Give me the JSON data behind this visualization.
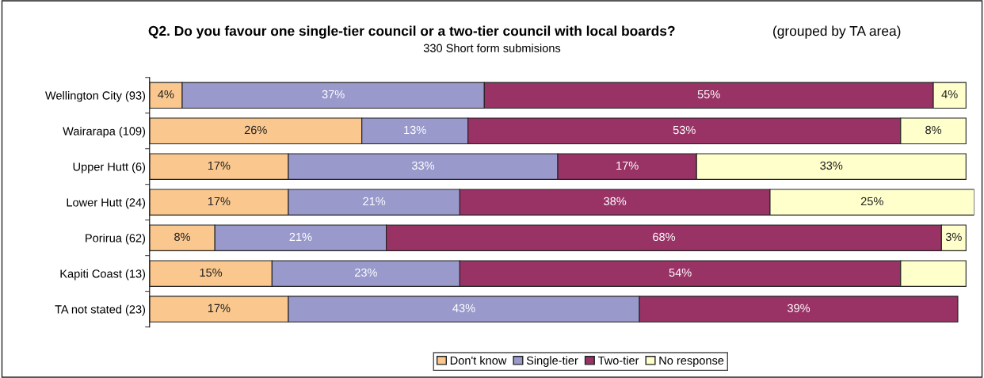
{
  "chart_data": {
    "type": "bar",
    "orientation": "horizontal",
    "stacked": true,
    "title": "Q2. Do you favour one single-tier council or a two-tier council with local boards?",
    "subtitle": "330 Short form submisions",
    "annotations": [
      "(grouped by TA area)"
    ],
    "categories": [
      "Wellington City (93)",
      "Wairarapa (109)",
      "Upper Hutt (6)",
      "Lower Hutt (24)",
      "Porirua (62)",
      "Kapiti Coast (13)",
      "TA not stated (23)"
    ],
    "xlim": [
      0,
      101
    ],
    "series": [
      {
        "name": "Don't know",
        "color": "#fac88f",
        "values": [
          4,
          26,
          17,
          17,
          8,
          15,
          17
        ],
        "value_labels": [
          "4%",
          "26%",
          "17%",
          "17%",
          "8%",
          "15%",
          "17%"
        ]
      },
      {
        "name": "Single-tier",
        "color": "#9999cc",
        "values": [
          37,
          13,
          33,
          21,
          21,
          23,
          43
        ],
        "value_labels": [
          "37%",
          "13%",
          "33%",
          "21%",
          "21%",
          "23%",
          "43%"
        ]
      },
      {
        "name": "Two-tier",
        "color": "#993366",
        "values": [
          55,
          53,
          17,
          38,
          68,
          54,
          39
        ],
        "value_labels": [
          "55%",
          "53%",
          "17%",
          "38%",
          "68%",
          "54%",
          "39%"
        ]
      },
      {
        "name": "No response",
        "color": "#ffffcc",
        "values": [
          4,
          8,
          33,
          25,
          3,
          8,
          null
        ],
        "value_labels": [
          "4%",
          "8%",
          "33%",
          "25%",
          "3%",
          null,
          null
        ]
      }
    ],
    "legend": "bottom",
    "grid": false
  }
}
